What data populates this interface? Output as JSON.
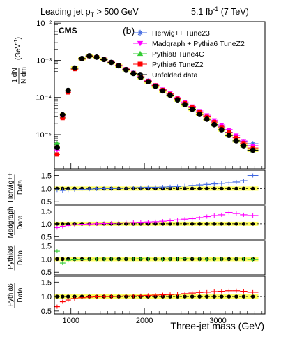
{
  "header": {
    "left_text": "Leading jet p",
    "left_sub": "T",
    "left_tail": " > 500 GeV",
    "right_text": "5.1 fb",
    "right_sup": "-1",
    "right_tail": " (7 TeV)"
  },
  "main": {
    "cms_label": "CMS",
    "panel_label": "(b)",
    "ylabel": "1 dN / N dm (GeV⁻¹)",
    "ylabel_top": "1 dN",
    "ylabel_bottom": "N dm",
    "ylabel_unit": "(GeV",
    "ylabel_unit_sup": "-1",
    "ylabel_unit_close": ")",
    "log_ticks": [
      "10⁻⁵",
      "10⁻⁴",
      "10⁻³",
      "10⁻²"
    ]
  },
  "legend": [
    {
      "name": "Herwig++ Tune23",
      "color": "#4169e1",
      "marker": "star"
    },
    {
      "name": "Madgraph + Pythia6 TuneZ2",
      "color": "#ff00ff",
      "marker": "triangle-down"
    },
    {
      "name": "Pythia8 Tune4C",
      "color": "#33cc33",
      "marker": "triangle-up"
    },
    {
      "name": "Pythia6 TuneZ2",
      "color": "#ff0000",
      "marker": "square"
    },
    {
      "name": "Unfolded data",
      "color": "#000000",
      "marker": "circle"
    }
  ],
  "ratio_panels": [
    {
      "top": "Herwig++",
      "bottom": "Data",
      "ticks": [
        "0.5",
        "1.0",
        "1.5"
      ]
    },
    {
      "top": "Madgraph",
      "bottom": "Data",
      "ticks": [
        "0.5",
        "1.0",
        "1.5"
      ]
    },
    {
      "top": "Pythia8",
      "bottom": "Data",
      "ticks": [
        "0.5",
        "1.0",
        "1.5"
      ]
    },
    {
      "top": "Pythia6",
      "bottom": "Data",
      "ticks": [
        "0.5",
        "1.0",
        "1.5"
      ]
    }
  ],
  "x_axis": {
    "label": "Three-jet mass (GeV)",
    "ticks": [
      "1000",
      "2000",
      "3000"
    ]
  },
  "chart_data": {
    "type": "scatter",
    "xlabel": "Three-jet mass (GeV)",
    "ylabel": "1 dN / N dm (GeV⁻¹)",
    "yscale": "log",
    "xlim": [
      775,
      3640
    ],
    "ylim": [
      1.2e-06,
      0.011
    ],
    "ratio_ylim": [
      0.4,
      1.7
    ],
    "bin_edges": [
      775,
      850,
      925,
      1000,
      1100,
      1200,
      1300,
      1400,
      1500,
      1600,
      1700,
      1800,
      1900,
      2000,
      2100,
      2200,
      2300,
      2400,
      2500,
      2600,
      2700,
      2800,
      2900,
      3000,
      3100,
      3200,
      3300,
      3400,
      3550
    ],
    "x": [
      812,
      887,
      962,
      1050,
      1150,
      1250,
      1350,
      1450,
      1550,
      1650,
      1750,
      1850,
      1950,
      2050,
      2150,
      2250,
      2350,
      2450,
      2550,
      2650,
      2750,
      2850,
      2950,
      3050,
      3150,
      3250,
      3350,
      3475
    ],
    "data": [
      4.5e-06,
      3.4e-05,
      0.000155,
      0.00062,
      0.00112,
      0.00132,
      0.00122,
      0.00105,
      0.00088,
      0.00071,
      0.00056,
      0.00044,
      0.000345,
      0.000265,
      0.0002,
      0.00015,
      0.000115,
      8.6e-05,
      6.4e-05,
      4.8e-05,
      3.5e-05,
      2.6e-05,
      1.85e-05,
      1.35e-05,
      9.5e-06,
      6.8e-06,
      5e-06,
      3.8e-06
    ],
    "series": [
      {
        "name": "Herwig++ Tune23",
        "ratio": [
          0.95,
          0.93,
          0.95,
          0.96,
          0.97,
          0.98,
          0.99,
          1.0,
          1.0,
          1.01,
          1.02,
          1.03,
          1.04,
          1.05,
          1.05,
          1.06,
          1.07,
          1.08,
          1.1,
          1.12,
          1.14,
          1.16,
          1.18,
          1.2,
          1.22,
          1.25,
          1.3,
          1.5
        ]
      },
      {
        "name": "Madgraph + Pythia6 TuneZ2",
        "ratio": [
          0.85,
          0.9,
          0.93,
          0.96,
          0.98,
          0.99,
          1.0,
          1.01,
          1.02,
          1.03,
          1.04,
          1.05,
          1.06,
          1.07,
          1.08,
          1.1,
          1.12,
          1.15,
          1.18,
          1.2,
          1.24,
          1.28,
          1.32,
          1.35,
          1.44,
          1.4,
          1.35,
          1.32
        ]
      },
      {
        "name": "Pythia8 Tune4C",
        "ratio": [
          1.3,
          0.85,
          0.95,
          0.97,
          0.98,
          0.99,
          1.0,
          1.0,
          1.0,
          0.99,
          1.0,
          1.0,
          1.01,
          1.0,
          1.0,
          0.99,
          1.0,
          1.0,
          1.01,
          1.0,
          1.0,
          0.99,
          1.0,
          1.0,
          0.99,
          1.0,
          1.0,
          0.98
        ]
      },
      {
        "name": "Pythia6 TuneZ2",
        "ratio": [
          0.65,
          0.82,
          0.88,
          0.93,
          0.96,
          0.98,
          0.99,
          1.0,
          1.0,
          1.01,
          1.02,
          1.02,
          1.03,
          1.04,
          1.05,
          1.06,
          1.07,
          1.08,
          1.1,
          1.12,
          1.14,
          1.15,
          1.17,
          1.18,
          1.2,
          1.2,
          1.18,
          1.15
        ]
      }
    ]
  }
}
